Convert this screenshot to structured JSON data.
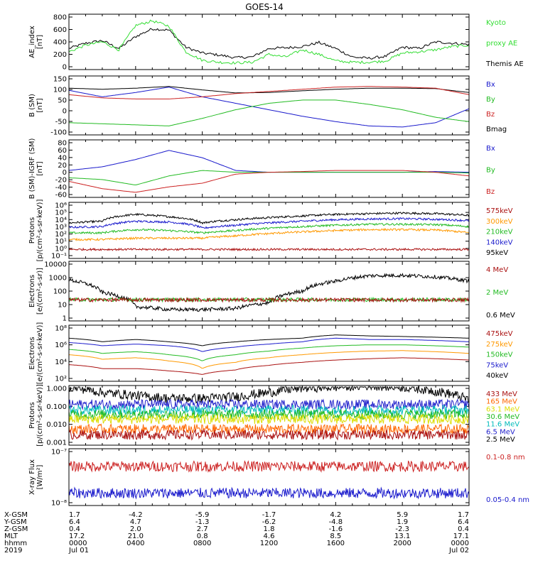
{
  "title": "GOES-14",
  "panels": [
    {
      "id": "ae",
      "ylabel_lines": [
        "AE_index",
        "[nT]"
      ],
      "yticks": [
        "800",
        "600",
        "400",
        "200",
        "0"
      ],
      "ylim": [
        0,
        800
      ],
      "legend": [
        {
          "text": "Kyoto",
          "color": "#33dd33"
        },
        {
          "text": "proxy AE",
          "color": "#33dd33"
        },
        {
          "text": "Themis AE",
          "color": "#000000"
        }
      ]
    },
    {
      "id": "b_sm",
      "ylabel_lines": [
        "B (SM)",
        "[nT]"
      ],
      "yticks": [
        "150",
        "100",
        "50",
        "0",
        "-50",
        "-100"
      ],
      "ylim": [
        -110,
        150
      ],
      "legend": [
        {
          "text": "Bx",
          "color": "#1a1acc"
        },
        {
          "text": "By",
          "color": "#22bb22"
        },
        {
          "text": "Bz",
          "color": "#cc2222"
        },
        {
          "text": "Bmag",
          "color": "#000000"
        }
      ]
    },
    {
      "id": "b_igrf",
      "ylabel_lines": [
        "B (SM)-IGRF (SM)",
        "[nT]"
      ],
      "yticks": [
        "80",
        "60",
        "40",
        "20",
        "0",
        "-20",
        "-40",
        "-60"
      ],
      "ylim": [
        -65,
        85
      ],
      "legend": [
        {
          "text": "Bx",
          "color": "#1a1acc"
        },
        {
          "text": "By",
          "color": "#22bb22"
        },
        {
          "text": "Bz",
          "color": "#cc2222"
        }
      ]
    },
    {
      "id": "protons_kev",
      "ylabel_lines": [
        "Protons",
        "[p/(cm²-s-sr-keV)]"
      ],
      "yticks": [
        "10⁶",
        "10⁵",
        "10⁴",
        "10³",
        "10²",
        "10¹",
        "10⁰",
        "10⁻¹"
      ],
      "ylim_log": [
        -1,
        6
      ],
      "legend": [
        {
          "text": "575keV",
          "color": "#aa1111"
        },
        {
          "text": "300keV",
          "color": "#ff9900"
        },
        {
          "text": "210keV",
          "color": "#22bb22"
        },
        {
          "text": "140keV",
          "color": "#1a1acc"
        },
        {
          "text": "95keV",
          "color": "#000000"
        }
      ]
    },
    {
      "id": "electrons_mev",
      "ylabel_lines": [
        "Electrons",
        "[e/(cm²-s-sr)]"
      ],
      "yticks": [
        "10000",
        "1000",
        "100",
        "10",
        "1"
      ],
      "ylim_log": [
        0,
        4
      ],
      "legend": [
        {
          "text": "4 MeV",
          "color": "#aa1111"
        },
        {
          "text": "2 MeV",
          "color": "#22bb22"
        },
        {
          "text": "0.6 MeV",
          "color": "#000000"
        }
      ]
    },
    {
      "id": "electrons_kev",
      "ylabel_lines": [
        "Electrons",
        "[e/(cm²-s-sr-keV)]"
      ],
      "yticks": [
        "10⁸",
        "10⁶",
        "10⁴",
        "10²"
      ],
      "ylim_log": [
        1,
        8
      ],
      "legend": [
        {
          "text": "475keV",
          "color": "#aa1111"
        },
        {
          "text": "275keV",
          "color": "#ff9900"
        },
        {
          "text": "150keV",
          "color": "#22bb22"
        },
        {
          "text": "75keV",
          "color": "#1a1acc"
        },
        {
          "text": "40keV",
          "color": "#000000"
        }
      ]
    },
    {
      "id": "protons_mev",
      "ylabel_lines": [
        "Protons",
        "[p/(cm²-s-sr-keV)]"
      ],
      "yticks": [
        "1.000",
        "0.100",
        "0.010",
        "0.001"
      ],
      "ylim_log": [
        -3,
        0
      ],
      "legend": [
        {
          "text": "433 MeV",
          "color": "#aa1111"
        },
        {
          "text": "165 MeV",
          "color": "#ff6600"
        },
        {
          "text": "63.1 MeV",
          "color": "#dddd00"
        },
        {
          "text": "30.6 MeV",
          "color": "#22bb22"
        },
        {
          "text": "11.6 MeV",
          "color": "#00bbbb"
        },
        {
          "text": "6.5 MeV",
          "color": "#2222cc"
        },
        {
          "text": "2.5 MeV",
          "color": "#000000"
        }
      ]
    },
    {
      "id": "xray",
      "ylabel_lines": [
        "X-ray Flux",
        "[W/m²]"
      ],
      "yticks": [
        "10⁻⁷",
        "10⁻⁸"
      ],
      "ylim_log": [
        -8,
        -7
      ],
      "legend": [
        {
          "text": "0.1-0.8 nm",
          "color": "#cc2222"
        },
        {
          "text": "0.05-0.4 nm",
          "color": "#1a1acc"
        }
      ]
    }
  ],
  "ephemeris": {
    "labels": [
      "X-GSM",
      "Y-GSM",
      "Z-GSM",
      "MLT",
      "hhmm",
      "2019"
    ],
    "columns": [
      [
        "1.7",
        "6.4",
        "0.4",
        "17.2",
        "0000",
        "Jul 01"
      ],
      [
        "-4.2",
        "4.7",
        "2.0",
        "21.0",
        "0400",
        ""
      ],
      [
        "-5.9",
        "-1.3",
        "2.7",
        "0.8",
        "0800",
        ""
      ],
      [
        "-1.7",
        "-6.2",
        "1.8",
        "4.6",
        "1200",
        ""
      ],
      [
        "4.2",
        "-4.8",
        "-1.6",
        "8.5",
        "1600",
        ""
      ],
      [
        "5.9",
        "1.9",
        "-2.3",
        "13.1",
        "2000",
        ""
      ],
      [
        "1.7",
        "6.4",
        "0.4",
        "17.1",
        "0000",
        "Jul 02"
      ]
    ]
  },
  "chart_data": [
    {
      "type": "line",
      "panel": "ae",
      "x_hours": [
        0,
        1,
        2,
        3,
        4,
        5,
        6,
        7,
        8,
        9,
        10,
        11,
        12,
        13,
        14,
        15,
        16,
        17,
        18,
        19,
        20,
        21,
        22,
        23,
        24
      ],
      "series": [
        {
          "name": "Themis AE",
          "values": [
            300,
            380,
            420,
            300,
            480,
            600,
            580,
            320,
            230,
            200,
            160,
            170,
            300,
            310,
            330,
            390,
            300,
            170,
            150,
            180,
            320,
            300,
            400,
            380,
            360
          ]
        },
        {
          "name": "Kyoto proxy AE",
          "values": [
            250,
            350,
            400,
            280,
            650,
            720,
            640,
            250,
            120,
            90,
            80,
            90,
            210,
            170,
            280,
            210,
            110,
            90,
            90,
            110,
            230,
            250,
            280,
            330,
            350
          ]
        }
      ],
      "ylim": [
        0,
        800
      ]
    },
    {
      "type": "line",
      "panel": "b_sm",
      "x_hours": [
        0,
        2,
        4,
        6,
        8,
        10,
        12,
        14,
        16,
        18,
        20,
        22,
        24
      ],
      "series": [
        {
          "name": "Bmag",
          "values": [
            100,
            95,
            100,
            108,
            92,
            78,
            80,
            88,
            95,
            100,
            100,
            98,
            80
          ]
        },
        {
          "name": "Bx",
          "values": [
            90,
            60,
            80,
            105,
            60,
            30,
            0,
            -30,
            -55,
            -75,
            -80,
            -60,
            5
          ]
        },
        {
          "name": "By",
          "values": [
            -60,
            -65,
            -70,
            -75,
            -40,
            0,
            30,
            45,
            45,
            25,
            0,
            -35,
            -55
          ]
        },
        {
          "name": "Bz",
          "values": [
            70,
            55,
            50,
            50,
            60,
            75,
            85,
            95,
            105,
            108,
            105,
            100,
            70
          ]
        }
      ],
      "ylim": [
        -110,
        150
      ]
    },
    {
      "type": "line",
      "panel": "b_igrf",
      "x_hours": [
        0,
        2,
        4,
        6,
        8,
        10,
        12,
        14,
        16,
        18,
        20,
        22,
        24
      ],
      "series": [
        {
          "name": "Bx",
          "values": [
            5,
            15,
            35,
            60,
            40,
            5,
            0,
            0,
            0,
            0,
            0,
            2,
            0
          ]
        },
        {
          "name": "By",
          "values": [
            -15,
            -20,
            -35,
            -10,
            5,
            0,
            0,
            0,
            0,
            0,
            0,
            0,
            -2
          ]
        },
        {
          "name": "Bz",
          "values": [
            -25,
            -45,
            -55,
            -40,
            -30,
            -5,
            0,
            2,
            5,
            5,
            5,
            0,
            -10
          ]
        }
      ],
      "ylim": [
        -65,
        85
      ]
    },
    {
      "type": "line",
      "panel": "protons_kev",
      "y_scale": "log",
      "x_hours": [
        0,
        2,
        4,
        6,
        8,
        10,
        12,
        14,
        16,
        18,
        20,
        22,
        24
      ],
      "series": [
        {
          "name": "95keV",
          "values": [
            3000,
            5000,
            40000,
            20000,
            3000,
            8000,
            15000,
            25000,
            40000,
            50000,
            60000,
            50000,
            30000
          ]
        },
        {
          "name": "140keV",
          "values": [
            800,
            1000,
            5000,
            4000,
            600,
            1500,
            3000,
            5000,
            8000,
            10000,
            11000,
            9000,
            6000
          ]
        },
        {
          "name": "210keV",
          "values": [
            150,
            150,
            400,
            300,
            150,
            300,
            600,
            1000,
            1500,
            2000,
            2000,
            1800,
            1000
          ]
        },
        {
          "name": "300keV",
          "values": [
            20,
            20,
            30,
            30,
            30,
            60,
            120,
            200,
            300,
            400,
            400,
            350,
            150
          ]
        },
        {
          "name": "575keV",
          "values": [
            1,
            1,
            1,
            1,
            1,
            1,
            1,
            1,
            1,
            1,
            1,
            1,
            1
          ]
        }
      ],
      "ylim": [
        0.1,
        1000000
      ]
    },
    {
      "type": "line",
      "panel": "electrons_mev",
      "y_scale": "log",
      "x_hours": [
        0,
        2,
        4,
        6,
        8,
        10,
        12,
        14,
        16,
        18,
        20,
        22,
        24
      ],
      "series": [
        {
          "name": "0.6 MeV",
          "values": [
            600,
            80,
            8,
            5,
            5,
            6,
            15,
            100,
            500,
            1200,
            1300,
            1000,
            500
          ]
        },
        {
          "name": "2 MeV",
          "values": [
            25,
            25,
            25,
            25,
            25,
            25,
            25,
            25,
            25,
            25,
            25,
            25,
            25
          ]
        },
        {
          "name": "4 MeV",
          "values": [
            24,
            24,
            24,
            24,
            24,
            24,
            24,
            24,
            24,
            24,
            24,
            24,
            24
          ]
        }
      ],
      "ylim": [
        1,
        10000
      ]
    },
    {
      "type": "line",
      "panel": "electrons_kev",
      "y_scale": "log",
      "x_hours": [
        0,
        2,
        4,
        6,
        8,
        10,
        12,
        14,
        16,
        18,
        20,
        22,
        24
      ],
      "series": [
        {
          "name": "40keV",
          "values": [
            3000000,
            1000000,
            2000000,
            1000000,
            300000,
            1000000,
            2000000,
            3000000,
            8000000,
            6000000,
            5000000,
            4000000,
            3000000
          ]
        },
        {
          "name": "75keV",
          "values": [
            800000,
            300000,
            500000,
            300000,
            50000,
            200000,
            500000,
            1000000,
            3000000,
            2000000,
            2000000,
            1500000,
            1000000
          ]
        },
        {
          "name": "150keV",
          "values": [
            100000,
            30000,
            50000,
            20000,
            3000,
            20000,
            60000,
            150000,
            300000,
            400000,
            400000,
            300000,
            200000
          ]
        },
        {
          "name": "275keV",
          "values": [
            20000,
            5000,
            8000,
            3000,
            300,
            2000,
            8000,
            20000,
            40000,
            60000,
            70000,
            50000,
            30000
          ]
        },
        {
          "name": "475keV",
          "values": [
            1000,
            300,
            300,
            150,
            50,
            200,
            800,
            2000,
            4000,
            6000,
            8000,
            6000,
            4000
          ]
        }
      ],
      "ylim": [
        10,
        100000000
      ]
    },
    {
      "type": "line",
      "panel": "protons_mev",
      "y_scale": "log",
      "x_hours": [
        0,
        2,
        4,
        6,
        8,
        10,
        12,
        14,
        16,
        18,
        20,
        22,
        24
      ],
      "series": [
        {
          "name": "2.5 MeV",
          "values": [
            1.0,
            0.5,
            0.35,
            0.25,
            0.25,
            0.3,
            0.5,
            0.9,
            1.0,
            1.2,
            1.0,
            0.6,
            0.2
          ]
        },
        {
          "name": "6.5 MeV",
          "values": [
            0.12,
            0.12,
            0.12,
            0.12,
            0.12,
            0.12,
            0.12,
            0.12,
            0.12,
            0.12,
            0.12,
            0.12,
            0.12
          ]
        },
        {
          "name": "11.6 MeV",
          "values": [
            0.06,
            0.06,
            0.06,
            0.06,
            0.06,
            0.06,
            0.06,
            0.06,
            0.06,
            0.06,
            0.06,
            0.06,
            0.06
          ]
        },
        {
          "name": "30.6 MeV",
          "values": [
            0.035,
            0.035,
            0.035,
            0.035,
            0.035,
            0.035,
            0.035,
            0.035,
            0.035,
            0.035,
            0.035,
            0.035,
            0.035
          ]
        },
        {
          "name": "63.1 MeV",
          "values": [
            0.02,
            0.02,
            0.02,
            0.02,
            0.02,
            0.02,
            0.02,
            0.02,
            0.02,
            0.02,
            0.02,
            0.02,
            0.02
          ]
        },
        {
          "name": "165 MeV",
          "values": [
            0.006,
            0.006,
            0.006,
            0.006,
            0.006,
            0.006,
            0.006,
            0.006,
            0.006,
            0.006,
            0.006,
            0.006,
            0.006
          ]
        },
        {
          "name": "433 MeV",
          "values": [
            0.003,
            0.003,
            0.003,
            0.003,
            0.003,
            0.003,
            0.003,
            0.003,
            0.003,
            0.003,
            0.003,
            0.003,
            0.003
          ]
        }
      ],
      "ylim": [
        0.001,
        1
      ]
    },
    {
      "type": "line",
      "panel": "xray",
      "y_scale": "log",
      "x_hours": [
        0,
        4,
        8,
        12,
        16,
        20,
        24
      ],
      "series": [
        {
          "name": "0.1-0.8 nm",
          "values": [
            5e-08,
            5e-08,
            5e-08,
            5e-08,
            5e-08,
            5e-08,
            5e-08
          ]
        },
        {
          "name": "0.05-0.4 nm",
          "values": [
            1.6e-08,
            1.6e-08,
            1.6e-08,
            1.6e-08,
            1.6e-08,
            1.6e-08,
            1.6e-08
          ]
        }
      ],
      "ylim": [
        1e-08,
        1e-07
      ]
    }
  ]
}
